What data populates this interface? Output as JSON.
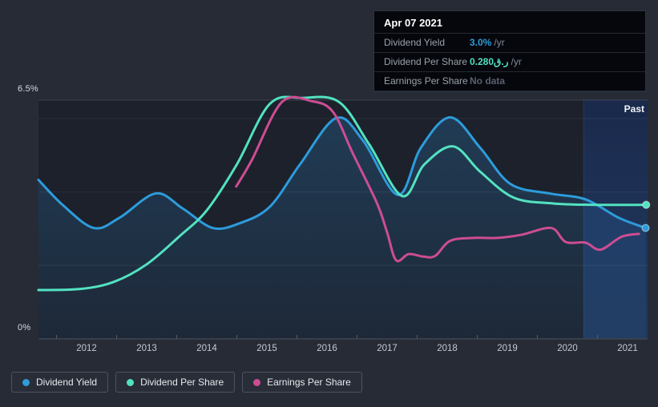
{
  "page": {
    "background": "#262b36"
  },
  "past_label": "Past",
  "y_axis_labels": {
    "top": "6.5%",
    "bottom": "0%"
  },
  "tooltip": {
    "date": "Apr 07 2021",
    "rows": [
      {
        "label": "Dividend Yield",
        "value": "3.0%",
        "suffix": "/yr",
        "value_color": "#2d9cdb"
      },
      {
        "label": "Dividend Per Share",
        "value": "0.280ر.ق",
        "suffix": "/yr",
        "value_color": "#4fe0c0"
      },
      {
        "label": "Earnings Per Share",
        "value": "No data",
        "suffix": "",
        "value_color": "#596070"
      }
    ]
  },
  "legend": [
    {
      "label": "Dividend Yield",
      "color": "#2d9cdb"
    },
    {
      "label": "Dividend Per Share",
      "color": "#53e2c1"
    },
    {
      "label": "Earnings Per Share",
      "color": "#cc4d93"
    }
  ],
  "chart_data": {
    "type": "line",
    "title": "Dividend history (yield axis)",
    "xlabel": "",
    "ylabel": "",
    "x_range_years": [
      2011.2,
      2021.33
    ],
    "ylim_pct": [
      0,
      6.5
    ],
    "y_tick_labels_shown": [
      "6.5%",
      "0%"
    ],
    "gridlines_pct": [
      6.5,
      6.0,
      4.0,
      2.0
    ],
    "x_tick_labels": [
      "2012",
      "2013",
      "2014",
      "2015",
      "2016",
      "2017",
      "2018",
      "2019",
      "2020",
      "2021"
    ],
    "minor_tick_years": [
      2011.5,
      2012.5,
      2013.5,
      2014.5,
      2015.5,
      2016.5,
      2017.5,
      2018.5,
      2019.5,
      2020.5
    ],
    "past_band_start_year": 2020.27,
    "legend_position": "bottom-left",
    "series": [
      {
        "name": "Dividend Yield",
        "color": "#2d9cdb",
        "area_fill": true,
        "end_dot": true,
        "points": [
          [
            2011.2,
            4.33
          ],
          [
            2011.6,
            3.65
          ],
          [
            2012.12,
            3.02
          ],
          [
            2012.55,
            3.3
          ],
          [
            2013.15,
            3.96
          ],
          [
            2013.6,
            3.55
          ],
          [
            2014.1,
            3.02
          ],
          [
            2014.55,
            3.15
          ],
          [
            2015.05,
            3.6
          ],
          [
            2015.55,
            4.75
          ],
          [
            2016.15,
            6.01
          ],
          [
            2016.6,
            5.4
          ],
          [
            2017.18,
            3.92
          ],
          [
            2017.56,
            5.2
          ],
          [
            2018.05,
            6.03
          ],
          [
            2018.55,
            5.2
          ],
          [
            2019.05,
            4.22
          ],
          [
            2019.7,
            3.96
          ],
          [
            2020.3,
            3.8
          ],
          [
            2020.85,
            3.3
          ],
          [
            2021.3,
            3.02
          ]
        ]
      },
      {
        "name": "Dividend Per Share",
        "color": "#53e2c1",
        "area_fill": false,
        "end_dot": true,
        "points": [
          [
            2011.2,
            1.33
          ],
          [
            2011.9,
            1.36
          ],
          [
            2012.45,
            1.55
          ],
          [
            2013.0,
            2.03
          ],
          [
            2013.55,
            2.8
          ],
          [
            2014.0,
            3.5
          ],
          [
            2014.5,
            4.75
          ],
          [
            2015.05,
            6.4
          ],
          [
            2015.6,
            6.56
          ],
          [
            2016.2,
            6.45
          ],
          [
            2016.7,
            5.3
          ],
          [
            2017.25,
            3.89
          ],
          [
            2017.62,
            4.75
          ],
          [
            2018.1,
            5.24
          ],
          [
            2018.55,
            4.55
          ],
          [
            2019.1,
            3.85
          ],
          [
            2019.75,
            3.69
          ],
          [
            2020.4,
            3.65
          ],
          [
            2021.31,
            3.65
          ]
        ]
      },
      {
        "name": "Earnings Per Share",
        "color": "#cc4d93",
        "area_fill": false,
        "end_dot": false,
        "points": [
          [
            2014.49,
            4.15
          ],
          [
            2014.75,
            4.87
          ],
          [
            2015.25,
            6.45
          ],
          [
            2015.75,
            6.47
          ],
          [
            2016.1,
            6.18
          ],
          [
            2016.43,
            5.05
          ],
          [
            2016.83,
            3.7
          ],
          [
            2017.0,
            2.9
          ],
          [
            2017.15,
            2.14
          ],
          [
            2017.36,
            2.31
          ],
          [
            2017.6,
            2.24
          ],
          [
            2017.8,
            2.26
          ],
          [
            2018.05,
            2.67
          ],
          [
            2018.45,
            2.75
          ],
          [
            2018.85,
            2.75
          ],
          [
            2019.25,
            2.84
          ],
          [
            2019.73,
            3.02
          ],
          [
            2019.97,
            2.64
          ],
          [
            2020.3,
            2.62
          ],
          [
            2020.55,
            2.43
          ],
          [
            2020.9,
            2.78
          ],
          [
            2021.19,
            2.86
          ]
        ]
      }
    ]
  }
}
